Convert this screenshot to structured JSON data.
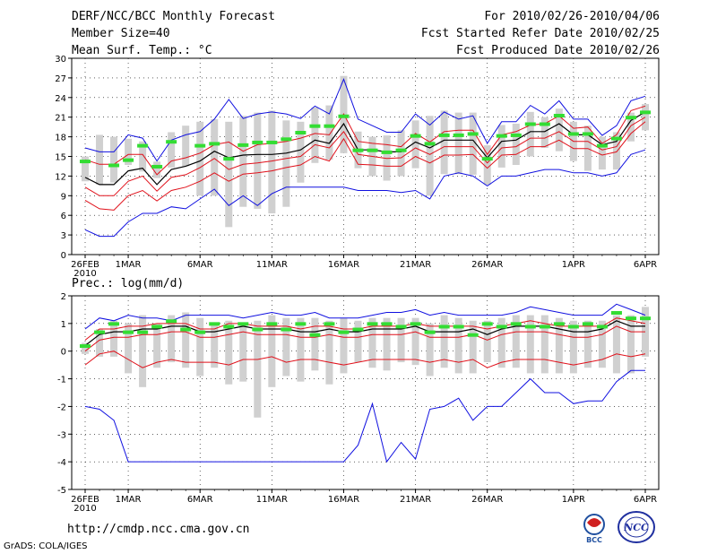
{
  "header": {
    "title": "DERF/NCC/BCC Monthly Forecast",
    "member_size": "Member Size=40",
    "variable": "Mean Surf. Temp.: °C",
    "period": "For 2010/02/26-2010/04/06",
    "started": "Fcst Started Refer Date 2010/02/25",
    "produced": "Fcst Produced Date 2010/02/26"
  },
  "footer": {
    "url": "http://cmdp.ncc.cma.gov.cn",
    "credit": "GrADS: COLA/IGES",
    "logo_bcc": "BCC",
    "logo_ncc": "NCC"
  },
  "colors": {
    "bar": "#d0d0d0",
    "mean": "#33dd33",
    "median": "#000000",
    "quartile": "#e0101a",
    "extreme": "#1010e0"
  },
  "chart_data": [
    {
      "type": "ensemble",
      "title": "",
      "ylabel": "Mean Surf. Temp.: °C",
      "ylim": [
        0,
        30
      ],
      "yticks": [
        0,
        3,
        6,
        9,
        12,
        15,
        18,
        21,
        24,
        27,
        30
      ],
      "xlabel_year": "2010",
      "xticks": [
        {
          "day": 0,
          "label": "26FEB"
        },
        {
          "day": 3,
          "label": "1MAR"
        },
        {
          "day": 8,
          "label": "6MAR"
        },
        {
          "day": 13,
          "label": "11MAR"
        },
        {
          "day": 18,
          "label": "16MAR"
        },
        {
          "day": 23,
          "label": "21MAR"
        },
        {
          "day": 28,
          "label": "26MAR"
        },
        {
          "day": 34,
          "label": "1APR"
        },
        {
          "day": 39,
          "label": "6APR"
        }
      ],
      "days": 40,
      "max": [
        16.3,
        15.7,
        15.7,
        18.3,
        17.8,
        14.3,
        17.5,
        18.3,
        18.8,
        20.7,
        23.7,
        20.8,
        21.5,
        21.8,
        21.5,
        20.8,
        22.7,
        21.5,
        26.8,
        20.7,
        19.7,
        18.7,
        18.7,
        21.5,
        19.8,
        21.8,
        20.7,
        21.2,
        17.0,
        20.3,
        20.3,
        22.8,
        21.5,
        23.5,
        20.7,
        20.7,
        18.2,
        19.7,
        23.5,
        24.2
      ],
      "q3": [
        14.5,
        13.8,
        13.8,
        15.3,
        15.3,
        12.2,
        14.3,
        14.8,
        15.5,
        16.8,
        17.2,
        15.8,
        16.8,
        17.0,
        17.3,
        17.8,
        18.5,
        18.3,
        21.5,
        17.3,
        17.0,
        16.8,
        16.5,
        18.5,
        17.2,
        18.8,
        19.0,
        19.0,
        15.3,
        18.3,
        18.8,
        19.8,
        20.0,
        21.2,
        19.3,
        19.5,
        17.0,
        18.3,
        22.0,
        22.7
      ],
      "med": [
        11.8,
        10.7,
        10.7,
        12.8,
        13.2,
        10.7,
        13.0,
        13.5,
        14.3,
        15.8,
        14.8,
        15.2,
        15.3,
        15.3,
        15.5,
        16.0,
        17.5,
        17.0,
        20.0,
        16.0,
        16.0,
        15.7,
        15.7,
        17.2,
        16.3,
        17.5,
        17.5,
        17.5,
        14.8,
        17.3,
        17.5,
        18.8,
        18.8,
        20.0,
        18.3,
        18.3,
        16.8,
        17.3,
        20.5,
        21.8
      ],
      "q1": [
        10.3,
        9.0,
        9.0,
        11.2,
        12.0,
        9.7,
        11.8,
        12.2,
        13.3,
        14.7,
        13.0,
        13.8,
        14.0,
        14.3,
        14.7,
        15.0,
        16.8,
        16.3,
        18.8,
        15.3,
        15.0,
        14.7,
        14.8,
        16.3,
        15.3,
        16.5,
        16.5,
        16.5,
        14.0,
        16.3,
        16.5,
        17.8,
        17.8,
        18.8,
        17.3,
        17.3,
        16.0,
        16.5,
        19.7,
        21.0
      ],
      "q0": [
        8.3,
        7.0,
        6.8,
        9.0,
        9.8,
        8.2,
        9.8,
        10.3,
        11.2,
        12.5,
        11.2,
        12.3,
        12.5,
        12.8,
        13.3,
        13.7,
        15.0,
        14.3,
        17.7,
        13.8,
        13.7,
        13.5,
        13.5,
        15.0,
        14.0,
        15.2,
        15.2,
        15.3,
        13.2,
        15.2,
        15.3,
        16.5,
        16.5,
        17.5,
        16.2,
        16.2,
        15.2,
        15.7,
        18.5,
        20.3
      ],
      "min": [
        3.8,
        2.8,
        2.8,
        5.0,
        6.3,
        6.3,
        7.3,
        7.0,
        8.5,
        10.0,
        7.5,
        9.0,
        7.5,
        9.3,
        10.3,
        10.3,
        10.3,
        10.3,
        10.3,
        9.8,
        9.8,
        9.8,
        9.5,
        9.8,
        8.5,
        12.0,
        12.5,
        12.0,
        10.5,
        12.0,
        12.0,
        12.5,
        13.0,
        13.0,
        12.5,
        12.5,
        12.0,
        12.5,
        15.3,
        16.0
      ],
      "bar_top": [
        15.0,
        18.3,
        18.0,
        17.7,
        17.3,
        14.2,
        18.7,
        19.7,
        20.3,
        20.7,
        20.3,
        21.2,
        21.7,
        22.0,
        20.5,
        20.3,
        22.5,
        22.8,
        27.3,
        18.8,
        18.0,
        18.2,
        19.0,
        20.5,
        21.2,
        22.0,
        21.7,
        21.7,
        16.7,
        19.8,
        20.0,
        21.8,
        21.0,
        22.3,
        20.3,
        19.7,
        18.0,
        18.7,
        21.7,
        23.0
      ],
      "bar_bot": [
        11.2,
        10.7,
        11.0,
        13.7,
        12.7,
        11.7,
        13.3,
        13.5,
        9.0,
        9.0,
        4.2,
        7.3,
        7.0,
        6.3,
        7.3,
        11.0,
        14.0,
        14.5,
        15.5,
        13.2,
        12.0,
        11.3,
        12.0,
        13.2,
        9.0,
        12.3,
        12.3,
        12.2,
        10.7,
        13.3,
        13.7,
        15.0,
        16.3,
        15.8,
        14.3,
        12.8,
        13.0,
        13.0,
        17.3,
        19.0
      ],
      "mean": [
        14.3,
        null,
        13.7,
        14.5,
        16.7,
        13.5,
        17.3,
        null,
        16.7,
        17.0,
        14.7,
        16.8,
        17.2,
        17.2,
        17.7,
        18.7,
        19.7,
        19.7,
        21.2,
        16.0,
        16.0,
        15.7,
        16.0,
        18.2,
        17.0,
        18.3,
        18.3,
        18.5,
        14.7,
        18.2,
        18.3,
        20.0,
        20.0,
        21.3,
        18.5,
        18.5,
        16.7,
        17.8,
        21.0,
        21.8
      ]
    },
    {
      "type": "ensemble",
      "title": "Prec.: log(mm/d)",
      "ylabel": "Prec.: log(mm/d)",
      "ylim": [
        -5,
        2
      ],
      "yticks": [
        -5,
        -4,
        -3,
        -2,
        -1,
        0,
        1,
        2
      ],
      "xlabel_year": "2010",
      "xticks": [
        {
          "day": 0,
          "label": "26FEB"
        },
        {
          "day": 3,
          "label": "1MAR"
        },
        {
          "day": 8,
          "label": "6MAR"
        },
        {
          "day": 13,
          "label": "11MAR"
        },
        {
          "day": 18,
          "label": "16MAR"
        },
        {
          "day": 23,
          "label": "21MAR"
        },
        {
          "day": 28,
          "label": "26MAR"
        },
        {
          "day": 34,
          "label": "1APR"
        },
        {
          "day": 39,
          "label": "6APR"
        }
      ],
      "days": 40,
      "max": [
        0.8,
        1.2,
        1.1,
        1.3,
        1.2,
        1.2,
        1.1,
        1.3,
        1.3,
        1.3,
        1.3,
        1.2,
        1.3,
        1.4,
        1.3,
        1.3,
        1.4,
        1.2,
        1.2,
        1.2,
        1.3,
        1.4,
        1.4,
        1.5,
        1.3,
        1.4,
        1.3,
        1.3,
        1.3,
        1.3,
        1.4,
        1.6,
        1.5,
        1.4,
        1.3,
        1.3,
        1.3,
        1.7,
        1.5,
        1.3
      ],
      "q3": [
        0.4,
        0.8,
        0.8,
        0.9,
        0.9,
        1.0,
        1.0,
        1.0,
        0.8,
        0.8,
        1.0,
        1.0,
        0.9,
        0.9,
        0.9,
        0.8,
        0.9,
        0.9,
        0.8,
        0.8,
        0.9,
        0.9,
        0.9,
        1.0,
        0.9,
        0.9,
        0.9,
        0.9,
        0.8,
        0.9,
        1.0,
        1.1,
        1.0,
        0.9,
        0.9,
        0.9,
        0.9,
        1.2,
        1.1,
        1.0
      ],
      "med": [
        0.2,
        0.6,
        0.7,
        0.7,
        0.8,
        0.8,
        0.9,
        0.9,
        0.7,
        0.7,
        0.8,
        0.9,
        0.8,
        0.8,
        0.8,
        0.7,
        0.7,
        0.8,
        0.7,
        0.7,
        0.8,
        0.8,
        0.8,
        0.9,
        0.7,
        0.7,
        0.7,
        0.8,
        0.6,
        0.8,
        0.9,
        0.9,
        0.9,
        0.8,
        0.7,
        0.7,
        0.8,
        1.1,
        0.9,
        0.9
      ],
      "q1": [
        0.0,
        0.4,
        0.5,
        0.5,
        0.6,
        0.6,
        0.7,
        0.7,
        0.5,
        0.5,
        0.6,
        0.7,
        0.6,
        0.6,
        0.6,
        0.5,
        0.5,
        0.6,
        0.5,
        0.5,
        0.6,
        0.6,
        0.6,
        0.7,
        0.5,
        0.5,
        0.5,
        0.6,
        0.4,
        0.6,
        0.7,
        0.7,
        0.7,
        0.6,
        0.5,
        0.5,
        0.6,
        0.9,
        0.7,
        0.7
      ],
      "q0": [
        -0.5,
        -0.1,
        0.0,
        -0.3,
        -0.6,
        -0.4,
        -0.3,
        -0.4,
        -0.4,
        -0.4,
        -0.5,
        -0.3,
        -0.3,
        -0.2,
        -0.4,
        -0.3,
        -0.3,
        -0.4,
        -0.5,
        -0.4,
        -0.3,
        -0.3,
        -0.3,
        -0.3,
        -0.4,
        -0.3,
        -0.4,
        -0.3,
        -0.6,
        -0.4,
        -0.3,
        -0.3,
        -0.3,
        -0.4,
        -0.5,
        -0.4,
        -0.3,
        -0.1,
        -0.2,
        -0.1
      ],
      "min": [
        -2.0,
        -2.1,
        -2.5,
        -4.0,
        -4.0,
        -4.0,
        -4.0,
        -4.0,
        -4.0,
        -4.0,
        -4.0,
        -4.0,
        -4.0,
        -4.0,
        -4.0,
        -4.0,
        -4.0,
        -4.0,
        -4.0,
        -3.4,
        -1.9,
        -4.0,
        -3.3,
        -3.9,
        -2.1,
        -2.0,
        -1.7,
        -2.5,
        -2.0,
        -2.0,
        -1.5,
        -1.0,
        -1.5,
        -1.5,
        -1.9,
        -1.8,
        -1.8,
        -1.1,
        -0.7,
        -0.7
      ],
      "bar_top": [
        0.3,
        0.8,
        1.1,
        1.0,
        1.3,
        1.0,
        1.3,
        1.4,
        1.2,
        1.0,
        1.1,
        1.0,
        1.1,
        1.3,
        1.2,
        1.2,
        1.2,
        1.1,
        1.2,
        1.1,
        1.2,
        1.2,
        1.2,
        1.2,
        1.0,
        1.3,
        1.2,
        1.1,
        1.1,
        1.2,
        1.3,
        1.3,
        1.3,
        1.2,
        1.1,
        1.1,
        1.1,
        1.3,
        1.3,
        1.6
      ],
      "bar_bot": [
        -0.1,
        -0.2,
        -0.2,
        -0.8,
        -1.3,
        -0.6,
        -0.4,
        -0.6,
        -0.9,
        -0.6,
        -1.2,
        -1.1,
        -2.4,
        -1.3,
        -0.9,
        -1.1,
        -0.7,
        -1.2,
        -0.8,
        -0.4,
        -0.6,
        -0.7,
        -0.4,
        -0.5,
        -0.9,
        -0.6,
        -0.8,
        -0.8,
        -0.4,
        -0.6,
        -0.6,
        -0.8,
        -0.8,
        -0.8,
        -0.8,
        -0.6,
        -0.6,
        -0.8,
        -0.8,
        -0.2
      ],
      "mean": [
        0.2,
        0.7,
        1.0,
        0.7,
        0.7,
        0.9,
        1.1,
        0.8,
        0.7,
        1.0,
        0.9,
        1.0,
        0.8,
        1.0,
        0.8,
        1.0,
        0.6,
        1.0,
        0.7,
        0.8,
        1.0,
        1.0,
        0.9,
        1.0,
        0.7,
        0.9,
        0.9,
        0.6,
        1.0,
        0.9,
        1.0,
        0.9,
        0.9,
        1.0,
        0.9,
        1.0,
        0.9,
        1.4,
        1.2,
        1.2
      ]
    }
  ]
}
